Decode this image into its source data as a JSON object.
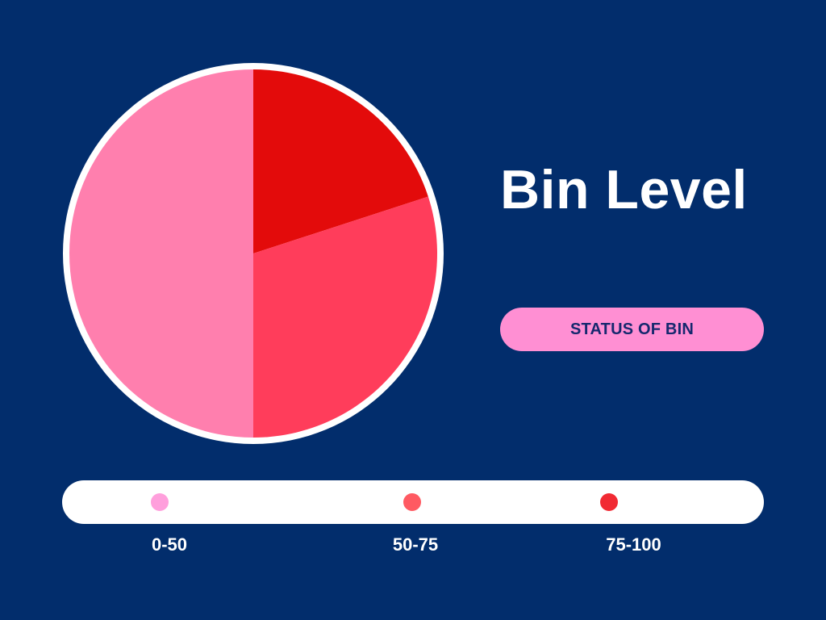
{
  "title": "Bin Level",
  "status_button": {
    "label": "STATUS OF BIN",
    "background": "#ff8fd3"
  },
  "legend": [
    {
      "label": "0-50",
      "color": "#ff9fdc"
    },
    {
      "label": "50-75",
      "color": "#ff5a62"
    },
    {
      "label": "75-100",
      "color": "#f12a33"
    }
  ],
  "chart_data": {
    "type": "pie",
    "title": "Bin Level",
    "slices": [
      {
        "value": 20,
        "color": "#e30b0b"
      },
      {
        "value": 30,
        "color": "#ff3d5b"
      },
      {
        "value": 50,
        "color": "#ff7fae"
      }
    ],
    "start_angle_deg": 0,
    "direction": "clockwise",
    "outline_color": "#ffffff"
  }
}
